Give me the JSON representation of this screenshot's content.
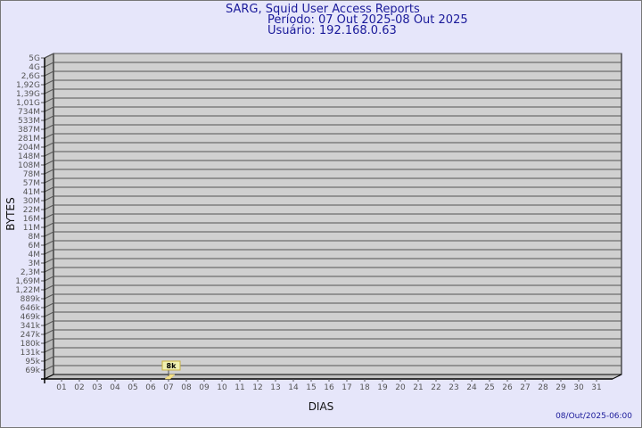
{
  "header": {
    "title": "SARG, Squid User Access Reports",
    "period": "Período: 07 Out 2025-08 Out 2025",
    "user": "Usuário: 192.168.0.63"
  },
  "footer": {
    "timestamp": "08/Out/2025-06:00"
  },
  "colors": {
    "background": "#e6e6fa",
    "plot_face": "#d0d0d0",
    "bar": "#f5e28a",
    "label_box": "#f0f0b0",
    "title_text": "#1a1a9a"
  },
  "chart_data": {
    "type": "bar",
    "xlabel": "DIAS",
    "ylabel": "BYTES",
    "y_scale": "log",
    "grid": true,
    "y_ticks": [
      "5G",
      "4G",
      "2,6G",
      "1,92G",
      "1,39G",
      "1,01G",
      "734M",
      "533M",
      "387M",
      "281M",
      "204M",
      "148M",
      "108M",
      "78M",
      "57M",
      "41M",
      "30M",
      "22M",
      "16M",
      "11M",
      "8M",
      "6M",
      "4M",
      "3M",
      "2,3M",
      "1,69M",
      "1,22M",
      "889k",
      "646k",
      "469k",
      "341k",
      "247k",
      "180k",
      "131k",
      "95k",
      "69k"
    ],
    "categories": [
      "01",
      "02",
      "03",
      "04",
      "05",
      "06",
      "07",
      "08",
      "09",
      "10",
      "11",
      "12",
      "13",
      "14",
      "15",
      "16",
      "17",
      "18",
      "19",
      "20",
      "21",
      "22",
      "23",
      "24",
      "25",
      "26",
      "27",
      "28",
      "29",
      "30",
      "31"
    ],
    "bars": [
      {
        "day": "07",
        "value": 8000,
        "label": "8k"
      }
    ]
  }
}
